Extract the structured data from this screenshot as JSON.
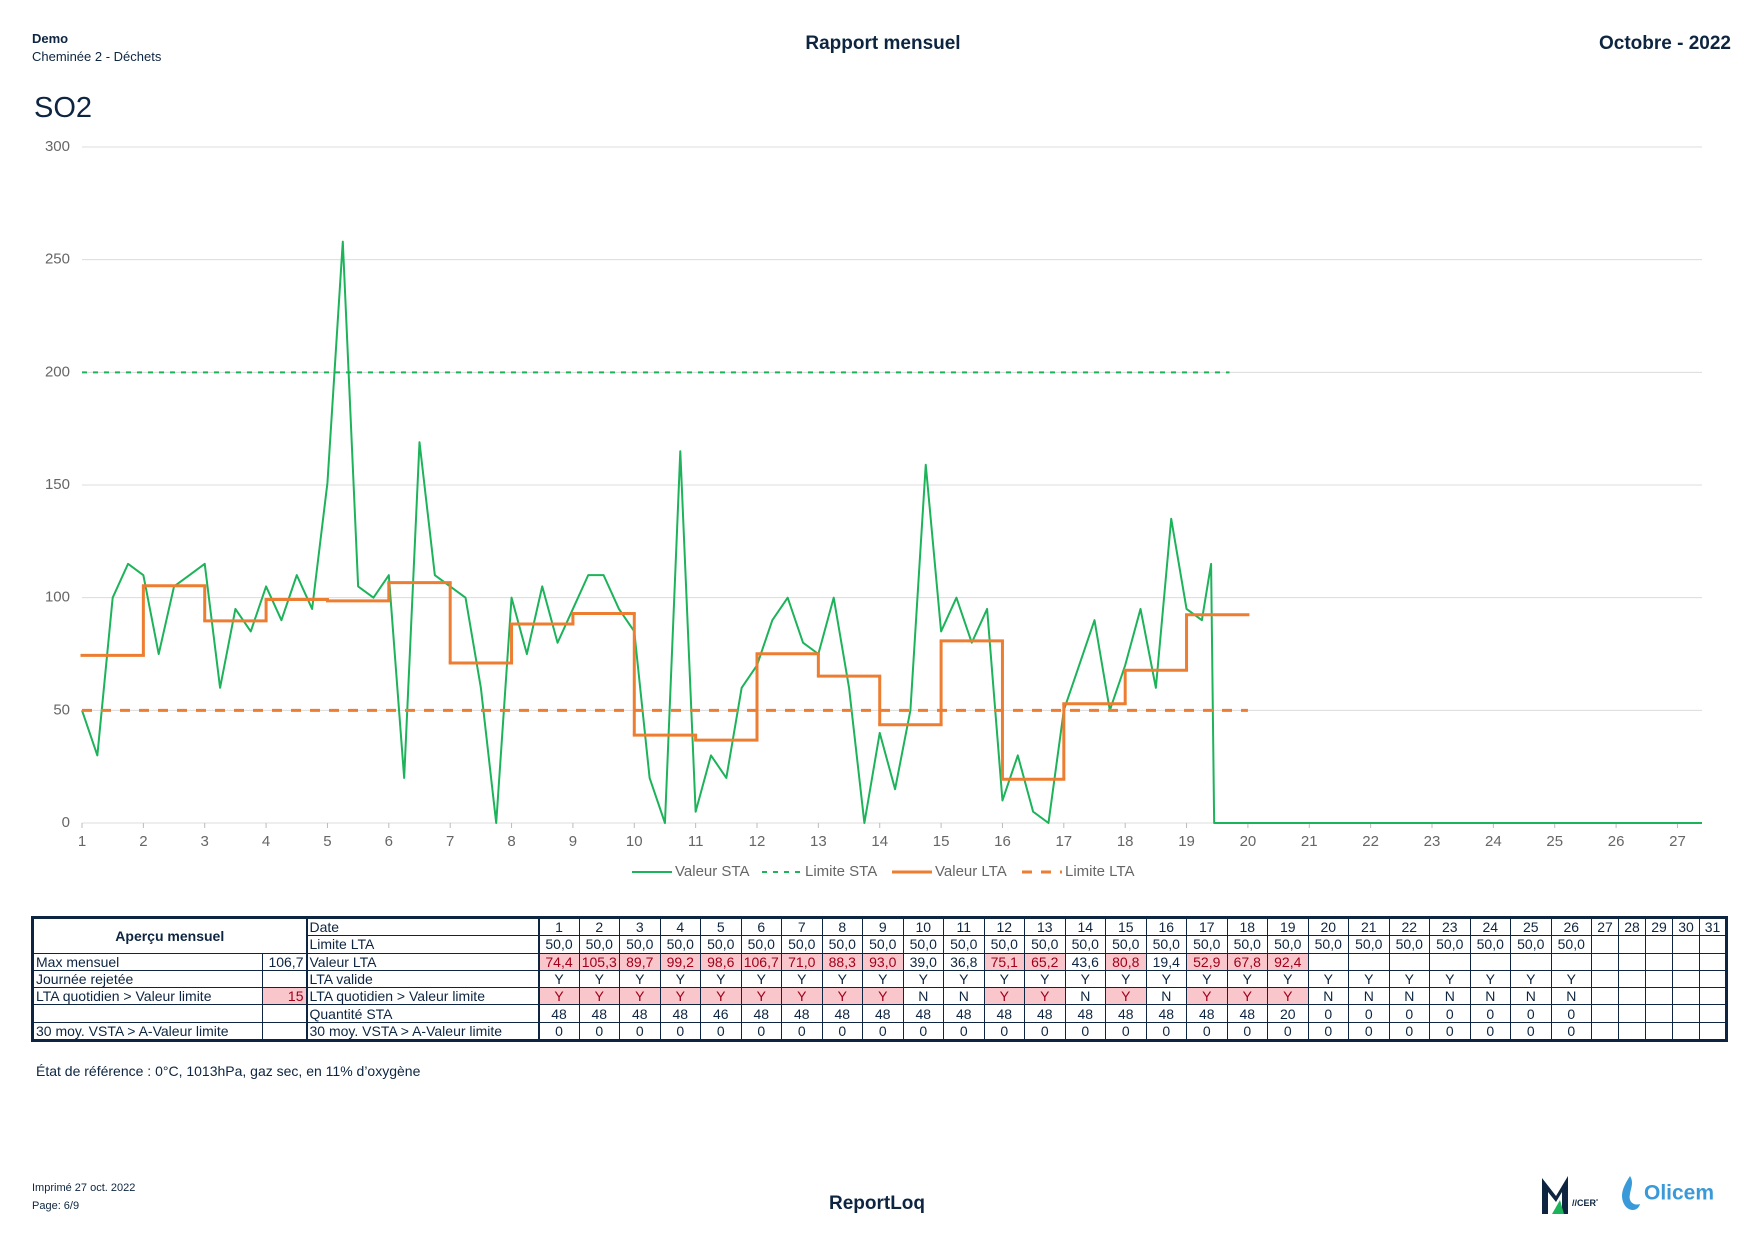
{
  "header": {
    "site": "Demo",
    "source": "Cheminée 2 - Déchets",
    "title": "Rapport mensuel",
    "period": "Octobre - 2022"
  },
  "chart_data": {
    "type": "line",
    "title": "SO2",
    "xlim": [
      1,
      27.4
    ],
    "xticks": [
      1,
      2,
      3,
      4,
      5,
      6,
      7,
      8,
      9,
      10,
      11,
      12,
      13,
      14,
      15,
      16,
      17,
      18,
      19,
      20,
      21,
      22,
      23,
      24,
      25,
      26,
      27
    ],
    "ylim": [
      0,
      300
    ],
    "yticks": [
      0,
      50,
      100,
      150,
      200,
      250,
      300
    ],
    "grid": true,
    "legend": "bottom",
    "series": [
      {
        "name": "Valeur STA",
        "color": "#1db35a",
        "line_style": "solid",
        "line_width": 2,
        "x": [
          1,
          1.25,
          1.5,
          1.75,
          2,
          2.25,
          2.5,
          2.75,
          3,
          3.25,
          3.5,
          3.75,
          4,
          4.25,
          4.5,
          4.75,
          5,
          5.25,
          5.5,
          5.75,
          6,
          6.25,
          6.5,
          6.75,
          7,
          7.25,
          7.5,
          7.75,
          8,
          8.25,
          8.5,
          8.75,
          9,
          9.25,
          9.5,
          9.75,
          10,
          10.25,
          10.5,
          10.75,
          11,
          11.25,
          11.5,
          11.75,
          12,
          12.25,
          12.5,
          12.75,
          13,
          13.25,
          13.5,
          13.75,
          14,
          14.25,
          14.5,
          14.75,
          15,
          15.25,
          15.5,
          15.75,
          16,
          16.25,
          16.5,
          16.75,
          17,
          17.25,
          17.5,
          17.75,
          18,
          18.25,
          18.5,
          18.75,
          19,
          19.25,
          19.4,
          19.45,
          27.4
        ],
        "values": [
          50,
          30,
          100,
          115,
          110,
          75,
          105,
          110,
          115,
          60,
          95,
          85,
          105,
          90,
          110,
          95,
          151,
          258,
          105,
          100,
          110,
          20,
          169,
          110,
          105,
          100,
          60,
          0,
          100,
          75,
          105,
          80,
          95,
          110,
          110,
          95,
          85,
          20,
          0,
          165,
          5,
          30,
          20,
          60,
          70,
          90,
          100,
          80,
          75,
          100,
          60,
          0,
          40,
          15,
          50,
          159,
          85,
          100,
          80,
          95,
          10,
          30,
          5,
          0,
          50,
          70,
          90,
          50,
          70,
          95,
          60,
          135,
          95,
          90,
          115,
          0,
          0
        ]
      },
      {
        "name": "Limite STA",
        "color": "#1db35a",
        "line_style": "dashed",
        "line_width": 2,
        "x": [
          1,
          19.7
        ],
        "values": [
          200,
          200
        ]
      },
      {
        "name": "Valeur LTA",
        "color": "#ed7d31",
        "line_style": "step",
        "line_width": 3,
        "x": [
          1,
          2,
          3,
          4,
          5,
          6,
          7,
          8,
          9,
          10,
          11,
          12,
          13,
          14,
          15,
          16,
          17,
          18,
          19
        ],
        "values": [
          74.4,
          105.3,
          89.7,
          99.2,
          98.6,
          106.7,
          71.0,
          88.3,
          93.0,
          39.0,
          36.8,
          75.1,
          65.2,
          43.6,
          80.8,
          19.4,
          52.9,
          67.8,
          92.4
        ]
      },
      {
        "name": "Limite LTA",
        "color": "#ed7d31",
        "line_style": "dashed",
        "line_width": 3,
        "x": [
          1,
          20
        ],
        "values": [
          50,
          50
        ]
      }
    ]
  },
  "table": {
    "overview_title": "Aperçu mensuel",
    "overview": [
      {
        "label": "Max mensuel",
        "value": "106,7"
      },
      {
        "label": "Journée rejetée"
      },
      {
        "label": "LTA quotidien > Valeur limite",
        "value": 15
      },
      null,
      {
        "label": "30 moy. VSTA > A-Valeur limite"
      }
    ],
    "date_label": "Date",
    "days": [
      1,
      2,
      3,
      4,
      5,
      6,
      7,
      8,
      9,
      10,
      11,
      12,
      13,
      14,
      15,
      16,
      17,
      18,
      19,
      20,
      21,
      22,
      23,
      24,
      25,
      26,
      27,
      28,
      29,
      30,
      31
    ],
    "rows": [
      {
        "label": "Limite LTA",
        "cells": [
          "50,0",
          "50,0",
          "50,0",
          "50,0",
          "50,0",
          "50,0",
          "50,0",
          "50,0",
          "50,0",
          "50,0",
          "50,0",
          "50,0",
          "50,0",
          "50,0",
          "50,0",
          "50,0",
          "50,0",
          "50,0",
          "50,0",
          "50,0",
          "50,0",
          "50,0",
          "50,0",
          "50,0",
          "50,0",
          "50,0"
        ]
      },
      {
        "label": "Valeur LTA",
        "cells": [
          "74,4",
          "105,3",
          "89,7",
          "99,2",
          "98,6",
          "106,7",
          "71,0",
          "88,3",
          "93,0",
          "39,0",
          "36,8",
          "75,1",
          "65,2",
          "43,6",
          "80,8",
          "19,4",
          "52,9",
          "67,8",
          "92,4"
        ]
      },
      {
        "label": "LTA valide",
        "cells": [
          "Y",
          "Y",
          "Y",
          "Y",
          "Y",
          "Y",
          "Y",
          "Y",
          "Y",
          "Y",
          "Y",
          "Y",
          "Y",
          "Y",
          "Y",
          "Y",
          "Y",
          "Y",
          "Y",
          "Y",
          "Y",
          "Y",
          "Y",
          "Y",
          "Y",
          "Y"
        ]
      },
      {
        "label": "LTA quotidien > Valeur limite",
        "cells": [
          "Y",
          "Y",
          "Y",
          "Y",
          "Y",
          "Y",
          "Y",
          "Y",
          "Y",
          "N",
          "N",
          "Y",
          "Y",
          "N",
          "Y",
          "N",
          "Y",
          "Y",
          "Y",
          "N",
          "N",
          "N",
          "N",
          "N",
          "N",
          "N"
        ]
      },
      {
        "label": "Quantité STA",
        "cells": [
          48,
          48,
          48,
          48,
          46,
          48,
          48,
          48,
          48,
          48,
          48,
          48,
          48,
          48,
          48,
          48,
          48,
          48,
          20,
          0,
          0,
          0,
          0,
          0,
          0,
          0
        ]
      },
      {
        "label": "30 moy. VSTA > A-Valeur limite",
        "cells": [
          0,
          0,
          0,
          0,
          0,
          0,
          0,
          0,
          0,
          0,
          0,
          0,
          0,
          0,
          0,
          0,
          0,
          0,
          0,
          0,
          0,
          0,
          0,
          0,
          0,
          0
        ]
      }
    ]
  },
  "note": "État de référence : 0°C, 1013hPa, gaz sec, en 11% d’oxygène",
  "footer": {
    "printed": "Imprimé 27 oct. 2022",
    "page": "Page: 6/9",
    "product": "ReportLoq",
    "logos": [
      "//CERT",
      "Olicem"
    ]
  }
}
